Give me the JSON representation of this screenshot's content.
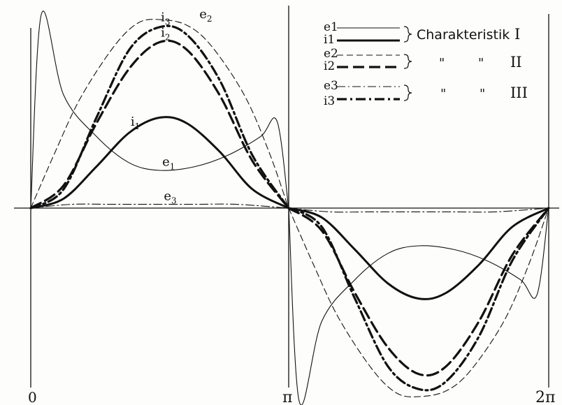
{
  "chart_data": {
    "type": "line",
    "title": "",
    "xlabel": "",
    "ylabel": "",
    "x_tick_labels": [
      "0",
      "π",
      "2π"
    ],
    "x_range": [
      0,
      6.2832
    ],
    "y_range": [
      -1.1,
      1.1
    ],
    "grid": false,
    "legend_position": "top-right",
    "legend": {
      "groups": [
        {
          "symbols": [
            "e1",
            "i1"
          ],
          "label": "Charakteristik",
          "numeral": "I"
        },
        {
          "symbols": [
            "e2",
            "i2"
          ],
          "label": "\"",
          "label2": "\"",
          "numeral": "II"
        },
        {
          "symbols": [
            "e3",
            "i3"
          ],
          "label": "\"",
          "label2": "\"",
          "numeral": "III"
        }
      ]
    },
    "series": [
      {
        "name": "e1",
        "x": [
          0,
          0.13,
          0.4,
          0.8,
          1.2,
          1.57,
          2.0,
          2.4,
          2.8,
          3.0,
          3.14
        ],
        "y": [
          0.0,
          1.03,
          0.6,
          0.38,
          0.24,
          0.2,
          0.22,
          0.28,
          0.38,
          0.46,
          0.0
        ]
      },
      {
        "name": "e2",
        "x": [
          0,
          0.3,
          0.6,
          1.0,
          1.3,
          1.57,
          1.9,
          2.2,
          2.6,
          2.9,
          3.14
        ],
        "y": [
          0.0,
          0.3,
          0.58,
          0.85,
          0.98,
          1.0,
          0.97,
          0.86,
          0.6,
          0.3,
          0.0
        ]
      },
      {
        "name": "e3",
        "x": [
          0,
          0.5,
          1.0,
          1.57,
          2.0,
          2.5,
          3.14
        ],
        "y": [
          0.0,
          0.02,
          0.02,
          0.02,
          0.02,
          0.02,
          0.0
        ]
      },
      {
        "name": "i1",
        "x": [
          0,
          0.4,
          0.8,
          1.2,
          1.57,
          1.9,
          2.3,
          2.7,
          3.14
        ],
        "y": [
          0.0,
          0.05,
          0.22,
          0.4,
          0.48,
          0.45,
          0.3,
          0.1,
          0.0
        ]
      },
      {
        "name": "i2",
        "x": [
          0,
          0.4,
          0.8,
          1.2,
          1.57,
          1.9,
          2.3,
          2.7,
          3.14
        ],
        "y": [
          0.0,
          0.12,
          0.45,
          0.74,
          0.88,
          0.84,
          0.6,
          0.25,
          0.0
        ]
      },
      {
        "name": "i3",
        "x": [
          0,
          0.4,
          0.8,
          1.2,
          1.57,
          1.9,
          2.3,
          2.7,
          3.14
        ],
        "y": [
          0.0,
          0.1,
          0.48,
          0.84,
          0.96,
          0.92,
          0.68,
          0.28,
          0.0
        ]
      }
    ],
    "annotations": [
      {
        "text": "e",
        "sub": "1",
        "series": "e1"
      },
      {
        "text": "e",
        "sub": "2",
        "series": "e2"
      },
      {
        "text": "e",
        "sub": "3",
        "series": "e3"
      },
      {
        "text": "i",
        "sub": "1",
        "series": "i1"
      },
      {
        "text": "i",
        "sub": "2",
        "series": "i2"
      },
      {
        "text": "i",
        "sub": "3",
        "series": "i3"
      }
    ],
    "styles": {
      "e1": {
        "stroke_width": 1.1,
        "dash": ""
      },
      "e2": {
        "stroke_width": 1.1,
        "dash": "9 5"
      },
      "e3": {
        "stroke_width": 1.1,
        "dash": "12 4 2 4"
      },
      "i1": {
        "stroke_width": 3.0,
        "dash": ""
      },
      "i2": {
        "stroke_width": 3.2,
        "dash": "16 7"
      },
      "i3": {
        "stroke_width": 3.2,
        "dash": "14 5 3 5"
      }
    },
    "color": "#111111"
  }
}
